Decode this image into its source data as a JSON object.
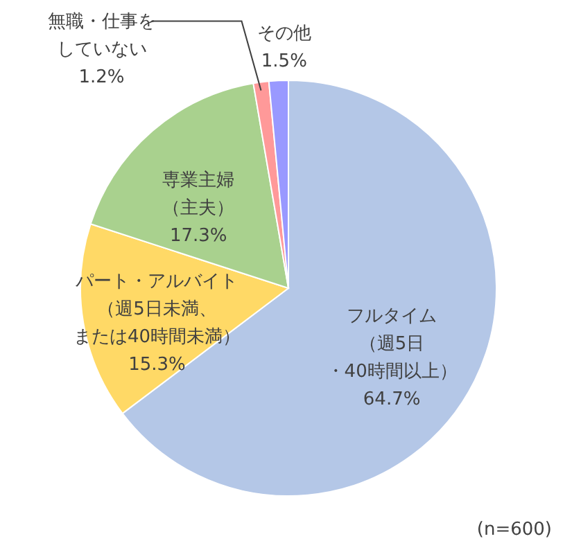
{
  "chart_data": {
    "type": "pie",
    "categories": [
      "フルタイム（週5日・40時間以上）",
      "パート・アルバイト（週5日未満、または40時間未満）",
      "専業主婦（主夫）",
      "無職・仕事をしていない",
      "その他"
    ],
    "values": [
      64.7,
      15.3,
      17.3,
      1.2,
      1.5
    ],
    "value_labels": [
      "64.7%",
      "15.3%",
      "17.3%",
      "1.2%",
      "1.5%"
    ],
    "colors": [
      "#b4c7e7",
      "#ffd966",
      "#a9d18e",
      "#ff9999",
      "#9999ff"
    ],
    "annotations": [
      "(n=600)"
    ]
  }
}
